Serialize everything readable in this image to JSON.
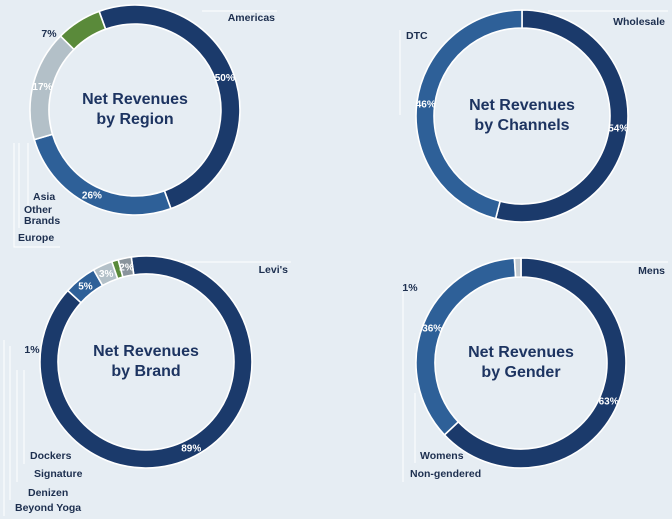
{
  "colors": {
    "navy": "#1b3a6b",
    "mid_blue": "#2e6098",
    "light_gray_blue": "#b3c0c8",
    "green": "#5a8a3a",
    "gray": "#8a949c",
    "pale_gray": "#c4ccd2",
    "background": "#e6edf3"
  },
  "chart_data": [
    {
      "type": "pie",
      "title_lines": [
        "Net Revenues",
        "by Region"
      ],
      "slices": [
        {
          "name": "Americas",
          "value": 50,
          "label": "50%",
          "color": "#1b3a6b"
        },
        {
          "name": "Europe",
          "value": 26,
          "label": "26%",
          "color": "#2e6098"
        },
        {
          "name": "Other Brands",
          "value": 0,
          "label": "",
          "color": "#1b3a6b"
        },
        {
          "name": "Asia",
          "value": 17,
          "label": "17%",
          "color": "#b3c0c8"
        },
        {
          "name": "",
          "value": 7,
          "label": "7%",
          "color": "#5a8a3a"
        }
      ]
    },
    {
      "type": "pie",
      "title_lines": [
        "Net Revenues",
        "by Channels"
      ],
      "slices": [
        {
          "name": "Wholesale",
          "value": 54,
          "label": "54%",
          "color": "#1b3a6b"
        },
        {
          "name": "DTC",
          "value": 46,
          "label": "46%",
          "color": "#2e6098"
        }
      ]
    },
    {
      "type": "pie",
      "title_lines": [
        "Net Revenues",
        "by Brand"
      ],
      "slices": [
        {
          "name": "Levi's",
          "value": 89,
          "label": "89%",
          "color": "#1b3a6b"
        },
        {
          "name": "Dockers",
          "value": 5,
          "label": "5%",
          "color": "#2e6098"
        },
        {
          "name": "Signature",
          "value": 3,
          "label": "3%",
          "color": "#b3c0c8"
        },
        {
          "name": "Denizen",
          "value": 1,
          "label": "1%",
          "color": "#5a8a3a"
        },
        {
          "name": "Beyond Yoga",
          "value": 2,
          "label": "2%",
          "color": "#8a949c"
        }
      ]
    },
    {
      "type": "pie",
      "title_lines": [
        "Net Revenues",
        "by Gender"
      ],
      "slices": [
        {
          "name": "Mens",
          "value": 63,
          "label": "63%",
          "color": "#1b3a6b"
        },
        {
          "name": "Womens",
          "value": 36,
          "label": "36%",
          "color": "#2e6098"
        },
        {
          "name": "Non-gendered",
          "value": 1,
          "label": "1%",
          "color": "#c4ccd2"
        }
      ]
    }
  ]
}
